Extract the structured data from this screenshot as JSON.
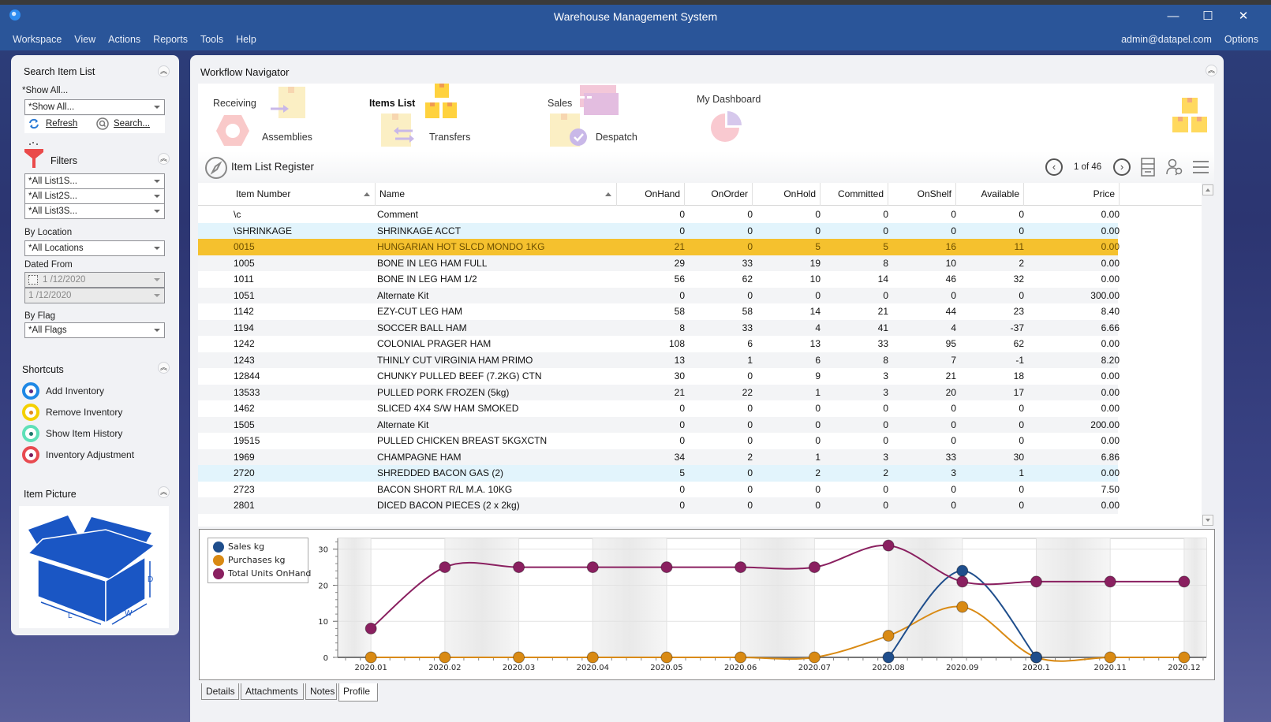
{
  "window": {
    "title": "Warehouse Management System",
    "controls": {
      "minimize": "—",
      "maximize": "☐",
      "close": "✕"
    }
  },
  "menu": {
    "items": [
      "Workspace",
      "View",
      "Actions",
      "Reports",
      "Tools",
      "Help"
    ],
    "user": "admin@datapel.com",
    "options": "Options"
  },
  "sidebar": {
    "search": {
      "title": "Search Item List",
      "show_label": "*Show All...",
      "show_value": "*Show All...",
      "refresh": "Refresh",
      "search": "Search..."
    },
    "filters": {
      "title": "Filters",
      "list1": "*All List1S...",
      "list2": "*All List2S...",
      "list3": "*All List3S...",
      "location_label": "By Location",
      "location_value": "*All Locations",
      "dated_label": "Dated From",
      "date_from": "1 /12/2020",
      "date_to": "1 /12/2020",
      "flag_label": "By Flag",
      "flag_value": "*All Flags"
    },
    "shortcuts": {
      "title": "Shortcuts",
      "items": [
        {
          "label": "Add Inventory",
          "ring": "#1e88e5",
          "dot": "#5b2a86"
        },
        {
          "label": "Remove Inventory",
          "ring": "#f4d000",
          "dot": "#e08a1e"
        },
        {
          "label": "Show Item History",
          "ring": "#5ee0b8",
          "dot": "#1d7a6b"
        },
        {
          "label": "Inventory Adjustment",
          "ring": "#e84a50",
          "dot": "#7a1a5a"
        }
      ]
    },
    "picture": {
      "title": "Item Picture"
    }
  },
  "workflow": {
    "title": "Workflow Navigator",
    "items": {
      "receiving": "Receiving",
      "assemblies": "Assemblies",
      "items_list": "Items List",
      "transfers": "Transfers",
      "sales": "Sales",
      "despatch": "Despatch",
      "dashboard": "My Dashboard"
    }
  },
  "register": {
    "title": "Item List Register",
    "page": "1 of 46",
    "columns": [
      "Item Number",
      "Name",
      "OnHand",
      "OnOrder",
      "OnHold",
      "Committed",
      "OnShelf",
      "Available",
      "Price"
    ],
    "rows": [
      [
        "\\c",
        "Comment",
        "0",
        "0",
        "0",
        "0",
        "0",
        "0",
        "0.00"
      ],
      [
        "\\SHRINKAGE",
        "SHRINKAGE ACCT",
        "0",
        "0",
        "0",
        "0",
        "0",
        "0",
        "0.00"
      ],
      [
        "0015",
        "HUNGARIAN HOT SLCD MONDO 1KG",
        "21",
        "0",
        "5",
        "5",
        "16",
        "11",
        "0.00"
      ],
      [
        "1005",
        "BONE IN LEG HAM FULL",
        "29",
        "33",
        "19",
        "8",
        "10",
        "2",
        "0.00"
      ],
      [
        "1011",
        "BONE IN LEG HAM 1/2",
        "56",
        "62",
        "10",
        "14",
        "46",
        "32",
        "0.00"
      ],
      [
        "1051",
        "Alternate Kit",
        "0",
        "0",
        "0",
        "0",
        "0",
        "0",
        "300.00"
      ],
      [
        "1142",
        "EZY-CUT LEG HAM",
        "58",
        "58",
        "14",
        "21",
        "44",
        "23",
        "8.40"
      ],
      [
        "1194",
        "SOCCER BALL HAM",
        "8",
        "33",
        "4",
        "41",
        "4",
        "-37",
        "6.66"
      ],
      [
        "1242",
        "COLONIAL PRAGER HAM",
        "108",
        "6",
        "13",
        "33",
        "95",
        "62",
        "0.00"
      ],
      [
        "1243",
        "THINLY CUT VIRGINIA HAM PRIMO",
        "13",
        "1",
        "6",
        "8",
        "7",
        "-1",
        "8.20"
      ],
      [
        "12844",
        "CHUNKY PULLED BEEF (7.2KG) CTN",
        "30",
        "0",
        "9",
        "3",
        "21",
        "18",
        "0.00"
      ],
      [
        "13533",
        "PULLED PORK FROZEN (5kg)",
        "21",
        "22",
        "1",
        "3",
        "20",
        "17",
        "0.00"
      ],
      [
        "1462",
        "SLICED 4X4 S/W HAM SMOKED",
        "0",
        "0",
        "0",
        "0",
        "0",
        "0",
        "0.00"
      ],
      [
        "1505",
        "Alternate Kit",
        "0",
        "0",
        "0",
        "0",
        "0",
        "0",
        "200.00"
      ],
      [
        "19515",
        "PULLED CHICKEN BREAST 5KGXCTN",
        "0",
        "0",
        "0",
        "0",
        "0",
        "0",
        "0.00"
      ],
      [
        "1969",
        "CHAMPAGNE HAM",
        "34",
        "2",
        "1",
        "3",
        "33",
        "30",
        "6.86"
      ],
      [
        "2720",
        "SHREDDED BACON GAS (2)",
        "5",
        "0",
        "2",
        "2",
        "3",
        "1",
        "0.00"
      ],
      [
        "2723",
        "BACON SHORT R/L M.A. 10KG",
        "0",
        "0",
        "0",
        "0",
        "0",
        "0",
        "7.50"
      ],
      [
        "2801",
        "DICED BACON PIECES (2 x 2kg)",
        "0",
        "0",
        "0",
        "0",
        "0",
        "0",
        "0.00"
      ]
    ],
    "row_styles": [
      "",
      "blue",
      "sel",
      "alt",
      "",
      "alt",
      "",
      "alt",
      "",
      "alt",
      "",
      "alt",
      "",
      "alt",
      "",
      "alt",
      "blue",
      "",
      "alt"
    ]
  },
  "chart_data": {
    "type": "line",
    "title": "",
    "xlabel": "",
    "ylabel": "",
    "x": [
      "2020.01",
      "2020.02",
      "2020.03",
      "2020.04",
      "2020.05",
      "2020.06",
      "2020.07",
      "2020.08",
      "2020.09",
      "2020.1",
      "2020.11",
      "2020.12"
    ],
    "ylim": [
      0,
      33
    ],
    "yticks": [
      0,
      10,
      20,
      30
    ],
    "grid": true,
    "legend": "top-left",
    "series": [
      {
        "name": "Sales kg",
        "color": "#1f4e8c",
        "values": [
          null,
          null,
          null,
          null,
          null,
          null,
          null,
          0,
          24,
          0,
          null,
          null
        ]
      },
      {
        "name": "Purchases kg",
        "color": "#d98a14",
        "values": [
          0,
          0,
          0,
          0,
          0,
          0,
          0,
          6,
          14,
          0,
          0,
          0
        ]
      },
      {
        "name": "Total Units OnHand",
        "color": "#8a2060",
        "values": [
          8,
          25,
          25,
          25,
          25,
          25,
          25,
          31,
          21,
          21,
          21,
          21
        ]
      }
    ]
  },
  "tabs": [
    "Details",
    "Attachments",
    "Notes",
    "Profile"
  ],
  "active_tab": "Profile"
}
